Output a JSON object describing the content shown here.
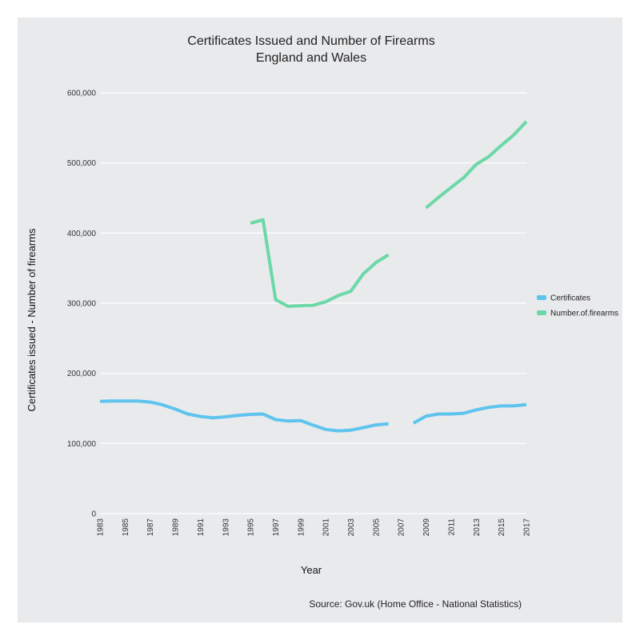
{
  "chart_data": {
    "type": "line",
    "title": "Certificates Issued and Number of Firearms",
    "subtitle": "England and Wales",
    "xlabel": "Year",
    "ylabel": "Certificates issued - Number of firearms",
    "source": "Source: Gov.uk (Home Office - National Statistics)",
    "xlim": [
      1983,
      2017
    ],
    "ylim": [
      0,
      600000
    ],
    "x_ticks": [
      "1983",
      "1985",
      "1987",
      "1989",
      "1991",
      "1993",
      "1995",
      "1997",
      "1999",
      "2001",
      "2003",
      "2005",
      "2007",
      "2009",
      "2011",
      "2013",
      "2015",
      "2017"
    ],
    "y_ticks": [
      {
        "value": 0,
        "label": "0"
      },
      {
        "value": 100000,
        "label": "100,000"
      },
      {
        "value": 200000,
        "label": "200,000"
      },
      {
        "value": 300000,
        "label": "300,000"
      },
      {
        "value": 400000,
        "label": "400,000"
      },
      {
        "value": 500000,
        "label": "500,000"
      },
      {
        "value": 600000,
        "label": "600,000"
      }
    ],
    "grid": "horizontal",
    "legend_position": "right",
    "series": [
      {
        "name": "Certificates",
        "color": "#5ec4ee",
        "points": [
          [
            1983,
            160000
          ],
          [
            1984,
            160500
          ],
          [
            1985,
            160500
          ],
          [
            1986,
            160500
          ],
          [
            1987,
            159000
          ],
          [
            1988,
            155000
          ],
          [
            1989,
            149000
          ],
          [
            1990,
            142000
          ],
          [
            1991,
            138500
          ],
          [
            1992,
            136500
          ],
          [
            1993,
            138000
          ],
          [
            1994,
            140000
          ],
          [
            1995,
            141500
          ],
          [
            1996,
            142000
          ],
          [
            1997,
            134000
          ],
          [
            1998,
            132000
          ],
          [
            1999,
            132500
          ],
          [
            2000,
            126000
          ],
          [
            2001,
            120000
          ],
          [
            2002,
            118000
          ],
          [
            2003,
            119000
          ],
          [
            2004,
            122500
          ],
          [
            2005,
            126500
          ],
          [
            2006,
            128000
          ],
          [
            2007,
            null
          ],
          [
            2008,
            129000
          ],
          [
            2009,
            139000
          ],
          [
            2010,
            142000
          ],
          [
            2011,
            142000
          ],
          [
            2012,
            143000
          ],
          [
            2013,
            148000
          ],
          [
            2014,
            151500
          ],
          [
            2015,
            153500
          ],
          [
            2016,
            153500
          ],
          [
            2017,
            155500
          ]
        ]
      },
      {
        "name": "Number.of.firearms",
        "color": "#6bd8a8",
        "points": [
          [
            1995,
            414000
          ],
          [
            1996,
            419000
          ],
          [
            1997,
            305000
          ],
          [
            1998,
            295500
          ],
          [
            1999,
            296500
          ],
          [
            2000,
            297000
          ],
          [
            2001,
            302000
          ],
          [
            2002,
            311000
          ],
          [
            2003,
            317000
          ],
          [
            2004,
            342000
          ],
          [
            2005,
            358000
          ],
          [
            2006,
            369000
          ],
          [
            2007,
            null
          ],
          [
            2008,
            null
          ],
          [
            2009,
            436000
          ],
          [
            2010,
            451000
          ],
          [
            2011,
            465000
          ],
          [
            2012,
            479000
          ],
          [
            2013,
            498000
          ],
          [
            2014,
            509000
          ],
          [
            2015,
            525000
          ],
          [
            2016,
            540000
          ],
          [
            2017,
            559000
          ]
        ]
      }
    ]
  }
}
